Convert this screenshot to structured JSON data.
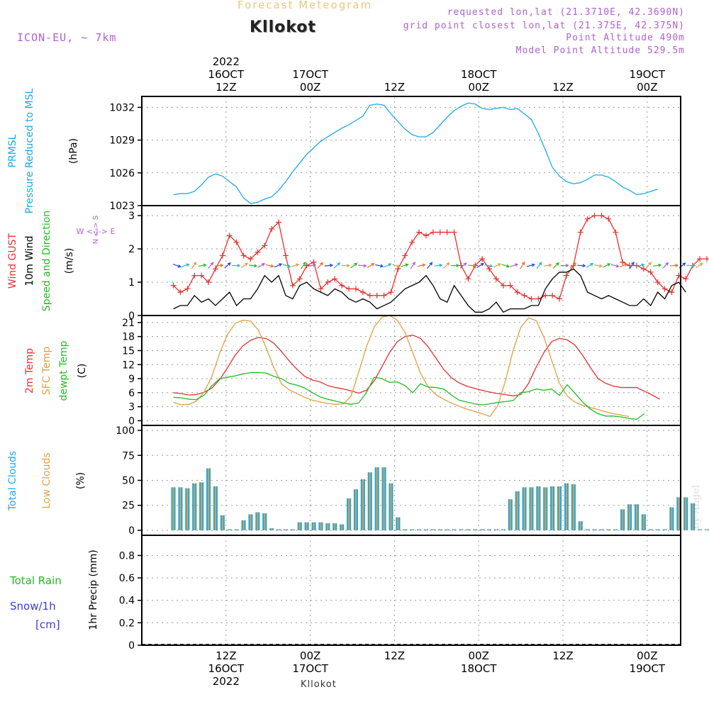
{
  "header": {
    "title": "Forecast Meteogram",
    "station": "Kllokot",
    "model": "ICON-EU, ~ 7km",
    "requested": "requested lon,lat (21.3710E, 42.3690N)",
    "grid_point": "grid point closest lon,lat (21.375E, 42.375N)",
    "point_altitude": "Point Altitude 490m",
    "model_altitude": "Model Point Altitude 529.5m",
    "footer": "Kllokot",
    "credit": "by Angel"
  },
  "time_axis": {
    "top_labels": [
      {
        "lines": [
          "2022",
          "16OCT",
          "12Z"
        ]
      },
      {
        "lines": [
          "17OCT",
          "00Z"
        ]
      },
      {
        "lines": [
          "12Z"
        ]
      },
      {
        "lines": [
          "18OCT",
          "00Z"
        ]
      },
      {
        "lines": [
          "12Z"
        ]
      },
      {
        "lines": [
          "19OCT",
          "00Z"
        ]
      }
    ],
    "bottom_labels": [
      {
        "lines": [
          "12Z",
          "16OCT",
          "2022"
        ]
      },
      {
        "lines": [
          "00Z",
          "17OCT"
        ]
      },
      {
        "lines": [
          "12Z"
        ]
      },
      {
        "lines": [
          "00Z",
          "18OCT"
        ]
      },
      {
        "lines": [
          "12Z"
        ]
      },
      {
        "lines": [
          "00Z",
          "19OCT"
        ]
      }
    ]
  },
  "panel_labels": {
    "pressure": [
      {
        "text": "PRMSL",
        "color": "#1ea8e6"
      },
      {
        "text": "Pressure Reduced to MSL",
        "color": "#1ea8e6"
      },
      {
        "text": "(hPa)",
        "color": "#000000"
      }
    ],
    "wind": [
      {
        "text": "Wind GUST",
        "color": "#e83030"
      },
      {
        "text": "10m Wind",
        "color": "#000000"
      },
      {
        "text": "Speed and Direction",
        "color": "#22bb22"
      },
      {
        "text": "(m/s)",
        "color": "#000000"
      }
    ],
    "wind_compass": {
      "ns": "N <-> S",
      "we": "W <-|-> E",
      "color": "#b060d0"
    },
    "temp": [
      {
        "text": "2m Temp",
        "color": "#e83030"
      },
      {
        "text": "SFC Temp",
        "color": "#e0a040"
      },
      {
        "text": "dewpt Temp",
        "color": "#22bb22"
      },
      {
        "text": "(C)",
        "color": "#000000"
      }
    ],
    "clouds": [
      {
        "text": "Total Clouds",
        "color": "#1ea8e6"
      },
      {
        "text": "Low Clouds",
        "color": "#e0a040"
      },
      {
        "text": "(%)",
        "color": "#000000"
      }
    ],
    "precip_left": [
      {
        "text": "Total  Rain",
        "color": "#22bb22"
      },
      {
        "text": "Snow/1h",
        "color": "#3a3ae0"
      },
      {
        "text": "[cm]",
        "color": "#3a3ae0"
      }
    ],
    "precip_axis": "1hr Precip (mm)"
  },
  "chart_data": [
    {
      "type": "line",
      "name": "pressure",
      "x_unit": "hours from 16OCT 00Z",
      "series": [
        {
          "name": "PRMSL",
          "color": "#1ea8e6",
          "values": [
            1024.0,
            1024.1,
            1024.1,
            1024.3,
            1024.9,
            1025.6,
            1025.9,
            1025.7,
            1025.2,
            1024.7,
            1023.7,
            1023.2,
            1023.3,
            1023.6,
            1023.8,
            1024.4,
            1025.2,
            1026.1,
            1026.9,
            1027.7,
            1028.3,
            1028.9,
            1029.3,
            1029.7,
            1030.1,
            1030.4,
            1030.8,
            1031.2,
            1032.2,
            1032.3,
            1032.2,
            1031.4,
            1030.7,
            1030.0,
            1029.5,
            1029.3,
            1029.3,
            1029.7,
            1030.4,
            1031.1,
            1031.7,
            1032.1,
            1032.4,
            1032.3,
            1031.9,
            1031.8,
            1031.9,
            1032.0,
            1031.8,
            1031.9,
            1031.4,
            1030.9,
            1029.6,
            1028.1,
            1026.5,
            1025.7,
            1025.2,
            1025.0,
            1025.1,
            1025.4,
            1025.8,
            1025.8,
            1025.6,
            1025.2,
            1024.7,
            1024.4,
            1024.0,
            1024.1,
            1024.3,
            1024.5
          ]
        }
      ],
      "x0": 4.5,
      "dx": 1,
      "ylim": [
        1023,
        1033
      ],
      "yticks": [
        1023,
        1026,
        1029,
        1032
      ],
      "ylabel": "(hPa)"
    },
    {
      "type": "line",
      "name": "wind",
      "series": [
        {
          "name": "Wind GUST",
          "color": "#e83030",
          "marker": "+",
          "values": [
            0.9,
            0.7,
            0.8,
            1.2,
            1.2,
            1.0,
            1.4,
            1.8,
            2.4,
            2.2,
            1.8,
            1.7,
            1.9,
            2.1,
            2.6,
            2.8,
            1.8,
            0.9,
            1.1,
            1.5,
            1.6,
            0.8,
            1.0,
            1.1,
            0.9,
            0.8,
            0.8,
            0.7,
            0.6,
            0.6,
            0.6,
            0.7,
            1.4,
            1.8,
            2.2,
            2.5,
            2.4,
            2.5,
            2.5,
            2.5,
            2.5,
            1.5,
            1.1,
            1.5,
            1.7,
            1.4,
            1.1,
            0.9,
            0.9,
            0.7,
            0.6,
            0.5,
            0.5,
            0.6,
            0.6,
            0.5,
            1.2,
            1.5,
            2.5,
            2.9,
            3.0,
            3.0,
            2.9,
            2.5,
            1.6,
            1.5,
            1.5,
            1.4,
            1.3,
            1.0,
            0.8,
            0.7,
            1.2,
            1.1,
            1.5,
            1.7,
            1.7
          ]
        },
        {
          "name": "10m Wind",
          "color": "#000000",
          "values": [
            0.2,
            0.3,
            0.3,
            0.6,
            0.4,
            0.5,
            0.3,
            0.5,
            0.7,
            0.3,
            0.5,
            0.5,
            0.8,
            1.2,
            1.0,
            1.2,
            0.6,
            0.5,
            0.9,
            1.0,
            0.8,
            0.7,
            0.6,
            0.8,
            0.7,
            0.5,
            0.4,
            0.5,
            0.4,
            0.2,
            0.3,
            0.4,
            0.6,
            0.8,
            0.9,
            1.0,
            1.2,
            0.9,
            0.5,
            0.4,
            0.9,
            0.6,
            0.3,
            0.1,
            0.1,
            0.2,
            0.4,
            0.1,
            0.2,
            0.2,
            0.2,
            0.3,
            0.3,
            0.8,
            1.1,
            1.3,
            1.3,
            1.4,
            1.2,
            0.7,
            0.6,
            0.5,
            0.6,
            0.5,
            0.4,
            0.3,
            0.3,
            0.5,
            0.3,
            0.7,
            0.5,
            0.9,
            1.0,
            0.7
          ]
        }
      ],
      "x0": 4.5,
      "dx": 1,
      "ylim": [
        0,
        3.3
      ],
      "yticks": [
        0,
        1,
        2,
        3
      ],
      "ylabel": "(m/s)",
      "arrows": {
        "y": 1.5,
        "x0": 5,
        "dx": 1.2,
        "count": 63
      }
    },
    {
      "type": "line",
      "name": "temp",
      "series": [
        {
          "name": "2m Temp",
          "color": "#e83030",
          "values": [
            6.0,
            5.8,
            5.5,
            5.6,
            6.1,
            7.0,
            8.8,
            11.3,
            14.0,
            16.0,
            17.2,
            17.8,
            17.6,
            16.6,
            14.8,
            12.8,
            11.0,
            9.5,
            8.7,
            8.3,
            7.5,
            7.1,
            6.8,
            6.4,
            5.9,
            6.5,
            8.5,
            11.5,
            14.6,
            16.9,
            18.0,
            18.3,
            17.6,
            15.8,
            13.4,
            11.0,
            9.2,
            8.1,
            7.4,
            6.9,
            6.5,
            6.1,
            5.8,
            5.6,
            5.3,
            5.6,
            8.0,
            11.5,
            14.6,
            16.9,
            17.6,
            17.3,
            16.2,
            14.0,
            11.4,
            9.0,
            8.0,
            7.4,
            7.1,
            7.1,
            7.1,
            6.3,
            5.5,
            4.6
          ]
        },
        {
          "name": "SFC Temp",
          "color": "#e0a040",
          "values": [
            3.9,
            3.4,
            3.5,
            4.2,
            6.2,
            9.5,
            14.5,
            18.4,
            20.8,
            21.5,
            21.3,
            19.4,
            15.7,
            11.4,
            7.9,
            6.6,
            5.8,
            5.0,
            4.4,
            4.0,
            3.7,
            3.5,
            3.6,
            5.2,
            10.4,
            15.8,
            20.0,
            22.1,
            22.5,
            21.5,
            18.9,
            14.6,
            10.2,
            7.2,
            5.6,
            4.6,
            3.8,
            3.1,
            2.5,
            2.0,
            1.5,
            0.9,
            3.2,
            8.5,
            15.0,
            20.0,
            22.0,
            21.4,
            17.8,
            12.9,
            8.0,
            5.3,
            4.0,
            3.3,
            2.8,
            2.4,
            1.9,
            1.5,
            1.2,
            0.9
          ]
        },
        {
          "name": "dewpt Temp",
          "color": "#22bb22",
          "values": [
            5.0,
            4.9,
            4.6,
            4.5,
            5.5,
            7.5,
            9.0,
            9.3,
            9.6,
            10.0,
            10.3,
            10.3,
            10.2,
            9.5,
            9.0,
            8.0,
            7.6,
            7.0,
            6.0,
            5.1,
            4.6,
            4.2,
            3.8,
            3.5,
            3.8,
            6.0,
            9.3,
            9.0,
            8.2,
            8.3,
            7.5,
            6.0,
            7.9,
            7.2,
            7.1,
            6.8,
            5.5,
            4.4,
            4.0,
            3.6,
            3.4,
            3.6,
            3.9,
            4.1,
            4.3,
            6.0,
            6.2,
            6.8,
            6.5,
            6.8,
            5.4,
            7.7,
            5.9,
            4.0,
            2.5,
            1.5,
            1.0,
            1.0,
            0.8,
            0.5,
            0.3,
            1.5
          ]
        }
      ],
      "x0": 4.5,
      "dx": 1.1,
      "ylim": [
        -1,
        22.5
      ],
      "yticks": [
        0,
        3,
        6,
        9,
        12,
        15,
        18,
        21
      ],
      "ylabel": "(C)"
    },
    {
      "type": "bar",
      "name": "clouds",
      "series": [
        {
          "name": "Total Clouds",
          "color": "#1ea8e6",
          "values": [
            43,
            43,
            42,
            47,
            48,
            62,
            44,
            15,
            1,
            1,
            10,
            16,
            18,
            17,
            2,
            1,
            1,
            1,
            8,
            8,
            8,
            8,
            7,
            7,
            6,
            32,
            41,
            51,
            58,
            63,
            63,
            47,
            13,
            1,
            1,
            1,
            1,
            1,
            1,
            1,
            1,
            1,
            1,
            1,
            1,
            1,
            1,
            1,
            31,
            39,
            43,
            43,
            44,
            43,
            44,
            44,
            47,
            46,
            9,
            1,
            1,
            1,
            1,
            1,
            21,
            26,
            26,
            16,
            1,
            1,
            1,
            23,
            33,
            33,
            27,
            1,
            1,
            1,
            1,
            1,
            1,
            1,
            1
          ]
        }
      ],
      "x0": 4.5,
      "dx": 1,
      "ylim": [
        -5,
        105
      ],
      "yticks": [
        0,
        25,
        50,
        75,
        100
      ],
      "ylabel": "(%)"
    },
    {
      "type": "bar",
      "name": "precip",
      "series": [
        {
          "name": "1hr Precip",
          "color": "#22bb22",
          "values": []
        }
      ],
      "ylim": [
        0,
        0.98
      ],
      "yticks": [
        0,
        0.2,
        0.4,
        0.6,
        0.8
      ],
      "ylabel": "1hr Precip (mm)"
    }
  ]
}
